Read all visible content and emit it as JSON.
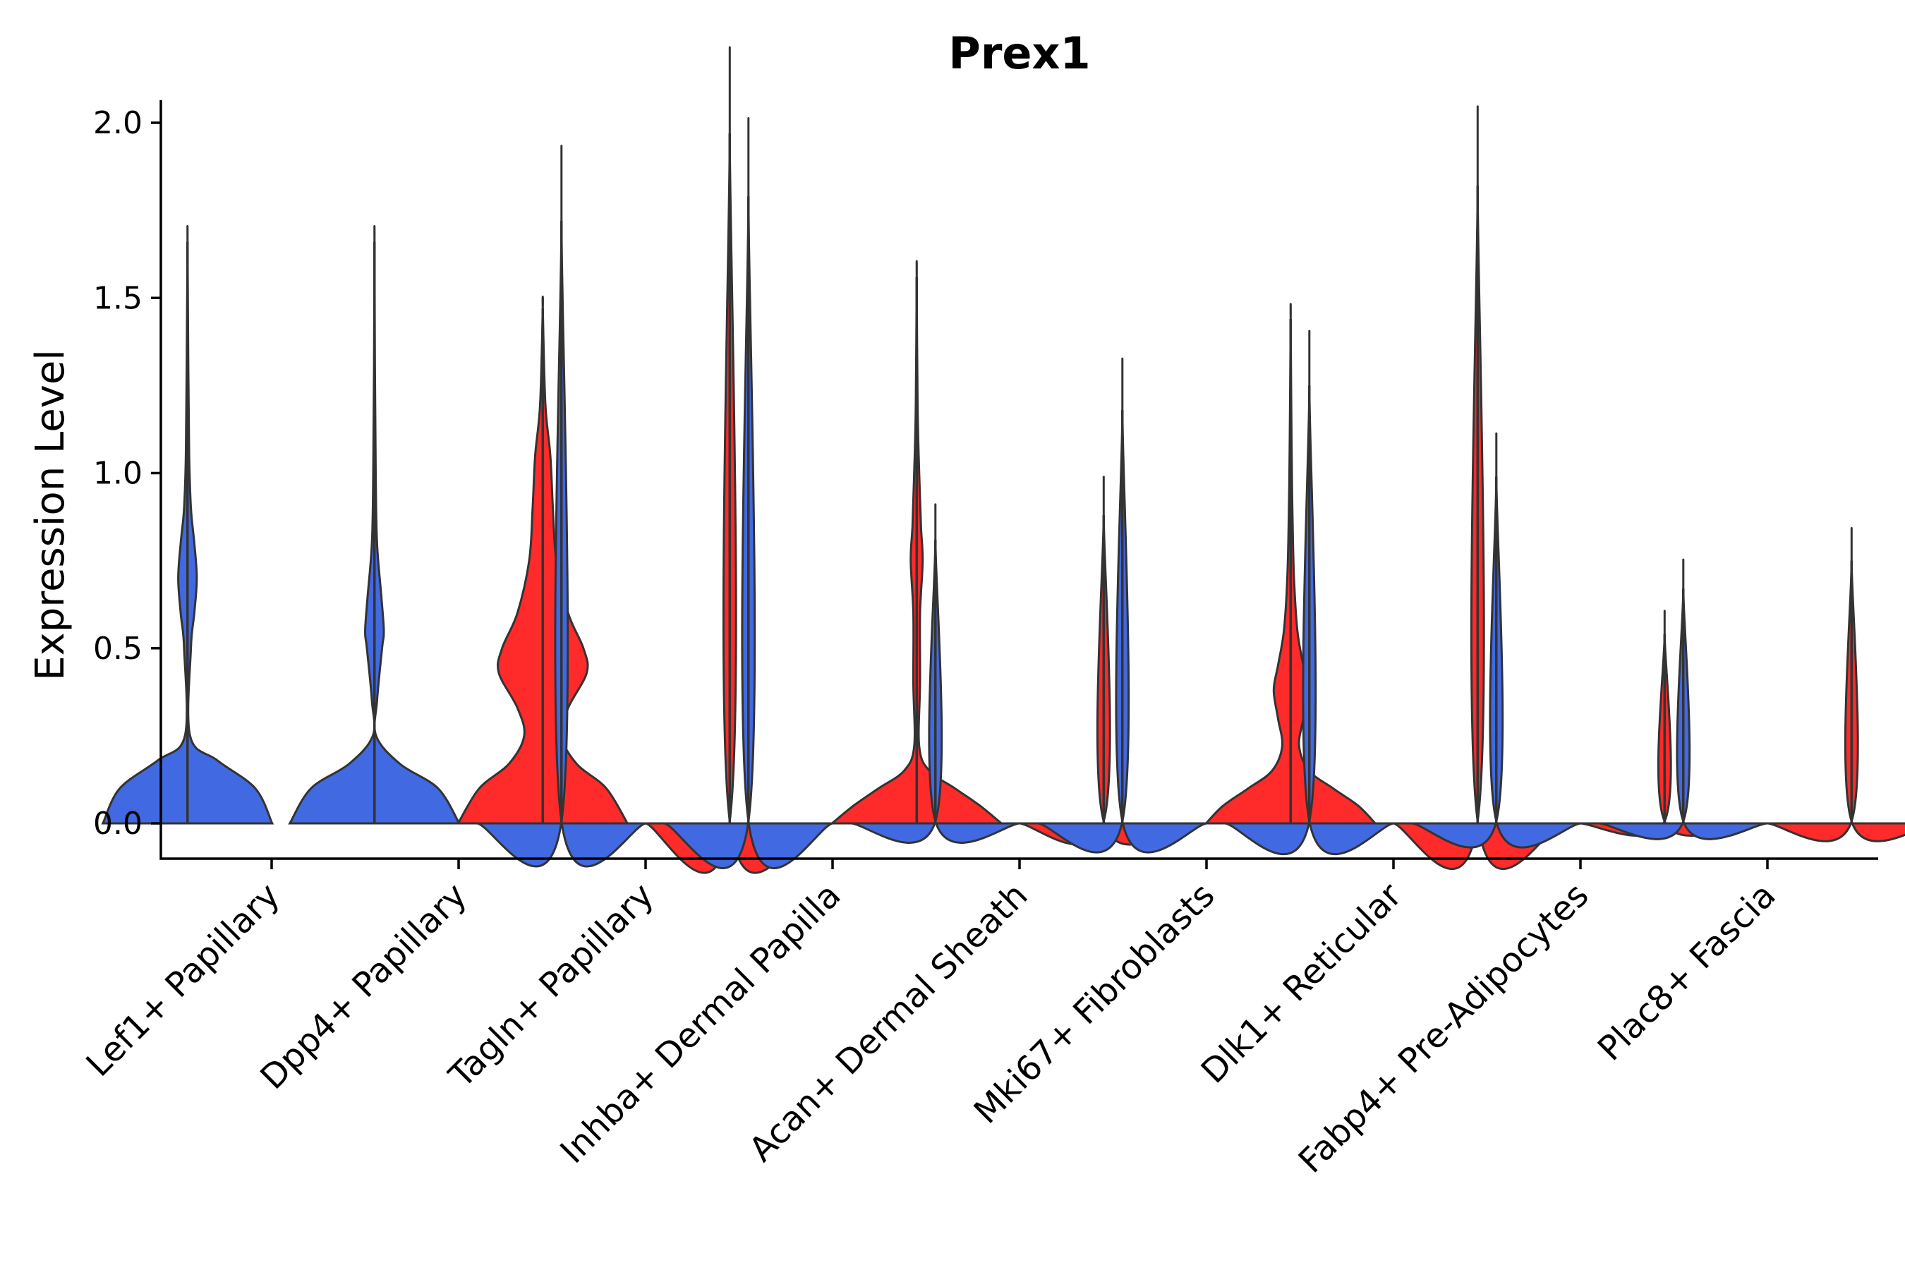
{
  "chart_data": {
    "type": "violin",
    "title": "Prex1",
    "xlabel": "",
    "ylabel": "Expression Level",
    "ylim": [
      -0.1,
      2.07
    ],
    "yticks": [
      0.0,
      0.5,
      1.0,
      1.5,
      2.0
    ],
    "ytick_labels": [
      "0.0",
      "0.5",
      "1.0",
      "1.5",
      "2.0"
    ],
    "colors": {
      "blue": "#4169E1",
      "red": "#FF2A2A",
      "outline": "#333333"
    },
    "violins": [
      {
        "name": "v1",
        "category": 1,
        "offset": -0.45,
        "color": "blue",
        "max": 1.66,
        "dens": [
          [
            0,
            1.0
          ],
          [
            0.1,
            0.8
          ],
          [
            0.18,
            0.35
          ],
          [
            0.25,
            0.03
          ],
          [
            0.5,
            0.04
          ],
          [
            0.6,
            0.08
          ],
          [
            0.7,
            0.11
          ],
          [
            0.8,
            0.08
          ],
          [
            0.9,
            0.04
          ],
          [
            1.05,
            0.02
          ],
          [
            1.3,
            0.01
          ],
          [
            1.66,
            0.0
          ]
        ]
      },
      {
        "name": "v2",
        "category": 2,
        "offset": -0.45,
        "color": "blue",
        "max": 1.66,
        "dens": [
          [
            0,
            1.0
          ],
          [
            0.1,
            0.75
          ],
          [
            0.17,
            0.3
          ],
          [
            0.25,
            0.02
          ],
          [
            0.35,
            0.03
          ],
          [
            0.5,
            0.09
          ],
          [
            0.55,
            0.11
          ],
          [
            0.65,
            0.08
          ],
          [
            0.8,
            0.03
          ],
          [
            1.0,
            0.015
          ],
          [
            1.3,
            0.005
          ],
          [
            1.66,
            0.0
          ]
        ]
      },
      {
        "name": "v3",
        "category": 2,
        "offset": 0.45,
        "color": "red",
        "max": 1.47,
        "dens": [
          [
            0,
            1.0
          ],
          [
            0.1,
            0.75
          ],
          [
            0.17,
            0.4
          ],
          [
            0.25,
            0.22
          ],
          [
            0.33,
            0.3
          ],
          [
            0.43,
            0.52
          ],
          [
            0.5,
            0.48
          ],
          [
            0.6,
            0.3
          ],
          [
            0.75,
            0.16
          ],
          [
            0.9,
            0.12
          ],
          [
            1.05,
            0.09
          ],
          [
            1.2,
            0.03
          ],
          [
            1.47,
            0.0
          ]
        ]
      },
      {
        "name": "v4",
        "category": 3,
        "offset": -0.45,
        "color": "blue",
        "max": 1.72,
        "dens": [
          [
            0,
            1.0
          ],
          [
            0.006,
            0.0
          ],
          [
            1.72,
            0.0
          ]
        ]
      },
      {
        "name": "v5",
        "category": 3,
        "offset": 0.45,
        "color": "red",
        "max": 1.97,
        "dens": [
          [
            0,
            1.0
          ],
          [
            0.006,
            0.0
          ],
          [
            1.97,
            0.0
          ]
        ]
      },
      {
        "name": "v6",
        "category": 4,
        "offset": -0.45,
        "color": "blue",
        "max": 1.79,
        "dens": [
          [
            0,
            1.0
          ],
          [
            0.006,
            0.0
          ],
          [
            1.79,
            0.0
          ]
        ]
      },
      {
        "name": "v7",
        "category": 4,
        "offset": 0.45,
        "color": "red",
        "max": 1.56,
        "dens": [
          [
            0,
            1.0
          ],
          [
            0.05,
            0.75
          ],
          [
            0.1,
            0.45
          ],
          [
            0.15,
            0.15
          ],
          [
            0.22,
            0.03
          ],
          [
            0.4,
            0.04
          ],
          [
            0.6,
            0.04
          ],
          [
            0.75,
            0.07
          ],
          [
            0.85,
            0.05
          ],
          [
            1.0,
            0.03
          ],
          [
            1.2,
            0.01
          ],
          [
            1.56,
            0.0
          ]
        ]
      },
      {
        "name": "v8",
        "category": 5,
        "offset": -0.45,
        "color": "blue",
        "max": 0.81,
        "dens": [
          [
            0,
            1.0
          ],
          [
            0.006,
            0.0
          ],
          [
            0.81,
            0.0
          ]
        ]
      },
      {
        "name": "v9",
        "category": 5,
        "offset": 0.45,
        "color": "red",
        "max": 0.88,
        "dens": [
          [
            0,
            1.0
          ],
          [
            0.006,
            0.0
          ],
          [
            0.88,
            0.0
          ]
        ]
      },
      {
        "name": "v10",
        "category": 6,
        "offset": -0.45,
        "color": "blue",
        "max": 1.18,
        "dens": [
          [
            0,
            1.0
          ],
          [
            0.006,
            0.0
          ],
          [
            1.18,
            0.0
          ]
        ]
      },
      {
        "name": "v11",
        "category": 6,
        "offset": 0.45,
        "color": "red",
        "max": 1.44,
        "dens": [
          [
            0,
            1.0
          ],
          [
            0.05,
            0.8
          ],
          [
            0.1,
            0.5
          ],
          [
            0.15,
            0.22
          ],
          [
            0.22,
            0.1
          ],
          [
            0.3,
            0.15
          ],
          [
            0.38,
            0.2
          ],
          [
            0.45,
            0.15
          ],
          [
            0.55,
            0.08
          ],
          [
            0.7,
            0.04
          ],
          [
            0.9,
            0.02
          ],
          [
            1.1,
            0.01
          ],
          [
            1.44,
            0.0
          ]
        ]
      },
      {
        "name": "v12",
        "category": 7,
        "offset": -0.45,
        "color": "blue",
        "max": 1.25,
        "dens": [
          [
            0,
            1.0
          ],
          [
            0.006,
            0.0
          ],
          [
            1.25,
            0.0
          ]
        ]
      },
      {
        "name": "v13",
        "category": 7,
        "offset": 0.45,
        "color": "red",
        "max": 1.82,
        "dens": [
          [
            0,
            1.0
          ],
          [
            0.006,
            0.0
          ],
          [
            1.82,
            0.0
          ]
        ]
      },
      {
        "name": "v14",
        "category": 8,
        "offset": -0.45,
        "color": "blue",
        "max": 0.99,
        "dens": [
          [
            0,
            1.0
          ],
          [
            0.006,
            0.0
          ],
          [
            0.99,
            0.0
          ]
        ]
      },
      {
        "name": "v15",
        "category": 8,
        "offset": 0.45,
        "color": "red",
        "max": 0.54,
        "dens": [
          [
            0,
            1.0
          ],
          [
            0.006,
            0.0
          ],
          [
            0.54,
            0.0
          ]
        ]
      },
      {
        "name": "v16",
        "category": 9,
        "offset": -0.45,
        "color": "blue",
        "max": 0.67,
        "dens": [
          [
            0,
            1.0
          ],
          [
            0.006,
            0.0
          ],
          [
            0.67,
            0.0
          ]
        ]
      },
      {
        "name": "v17",
        "category": 9,
        "offset": 0.45,
        "color": "red",
        "max": 0.75,
        "dens": [
          [
            0,
            1.0
          ],
          [
            0.006,
            0.0
          ],
          [
            0.75,
            0.0
          ]
        ]
      }
    ],
    "categories": [
      "Lef1+ Papillary",
      "Dpp4+ Papillary",
      "Tagln+ Papillary",
      "Inhba+ Dermal Papilla",
      "Acan+ Dermal Sheath",
      "Mki67+ Fibroblasts",
      "Dlk1+ Reticular",
      "Fabp4+ Pre-Adipocytes",
      "Plac8+ Fascia"
    ]
  }
}
